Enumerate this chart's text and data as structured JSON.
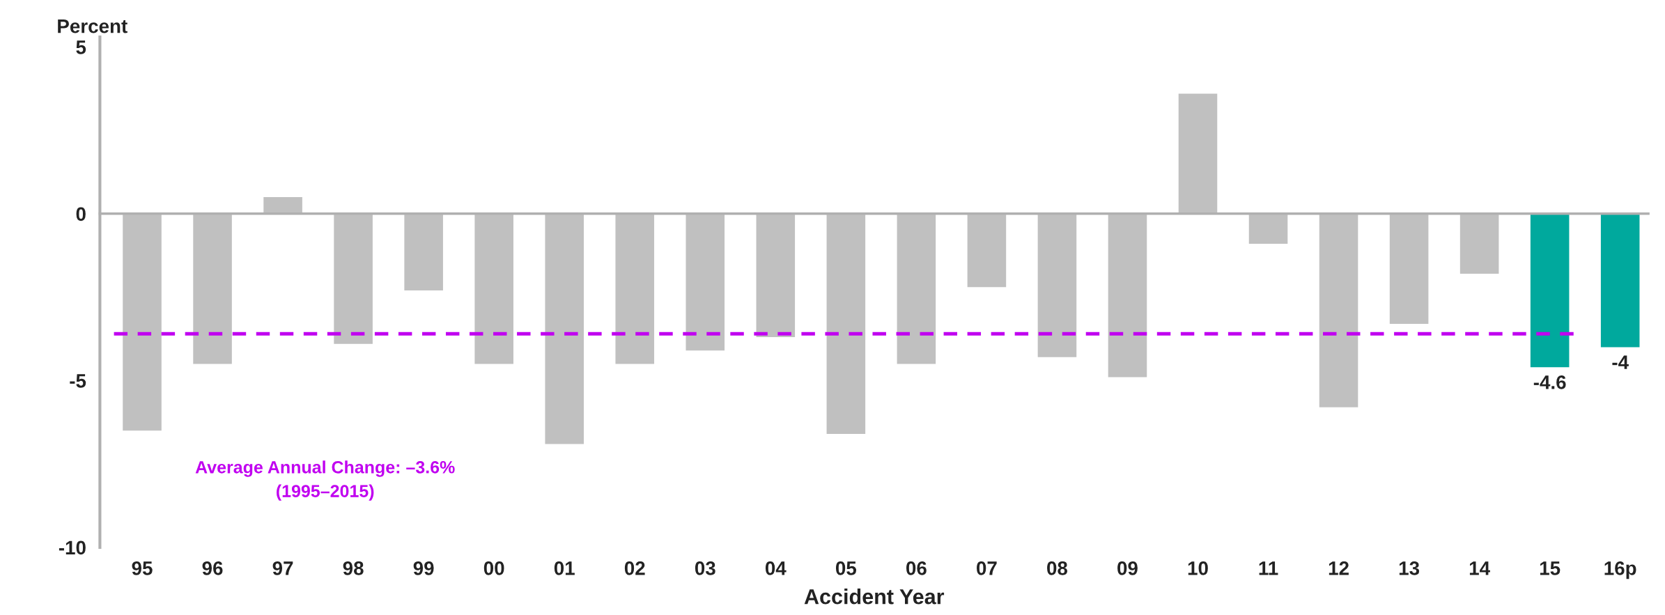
{
  "chart_data": {
    "type": "bar",
    "xlabel": "Accident Year",
    "ylabel": "Percent",
    "categories": [
      "95",
      "96",
      "97",
      "98",
      "99",
      "00",
      "01",
      "02",
      "03",
      "04",
      "05",
      "06",
      "07",
      "08",
      "09",
      "10",
      "11",
      "12",
      "13",
      "14",
      "15",
      "16p"
    ],
    "values": [
      -6.5,
      -4.5,
      0.5,
      -3.9,
      -2.3,
      -4.5,
      -6.9,
      -4.5,
      -4.1,
      -3.7,
      -6.6,
      -4.5,
      -2.2,
      -4.3,
      -4.9,
      3.6,
      -0.9,
      -5.8,
      -3.3,
      -1.8,
      -4.6,
      -4
    ],
    "colors": [
      "#c0c0c0",
      "#c0c0c0",
      "#c0c0c0",
      "#c0c0c0",
      "#c0c0c0",
      "#c0c0c0",
      "#c0c0c0",
      "#c0c0c0",
      "#c0c0c0",
      "#c0c0c0",
      "#c0c0c0",
      "#c0c0c0",
      "#c0c0c0",
      "#c0c0c0",
      "#c0c0c0",
      "#c0c0c0",
      "#c0c0c0",
      "#c0c0c0",
      "#c0c0c0",
      "#c0c0c0",
      "#00a99d",
      "#00a99d"
    ],
    "value_labels": [
      null,
      null,
      null,
      null,
      null,
      null,
      null,
      null,
      null,
      null,
      null,
      null,
      null,
      null,
      null,
      null,
      null,
      null,
      null,
      null,
      "-4.6",
      "-4"
    ],
    "ylim": [
      -10,
      5.3
    ],
    "yticks": [
      {
        "value": 5,
        "label": "5"
      },
      {
        "value": 0,
        "label": "0"
      },
      {
        "value": -5,
        "label": "-5"
      },
      {
        "value": -10,
        "label": "-10"
      }
    ],
    "ref_lines": [
      {
        "axis": "y",
        "value": -3.6,
        "label": "Average Annual Change: –3.6%\n(1995–2015)",
        "color": "#c000f0",
        "line_style": "dashed"
      }
    ],
    "legend": false
  }
}
